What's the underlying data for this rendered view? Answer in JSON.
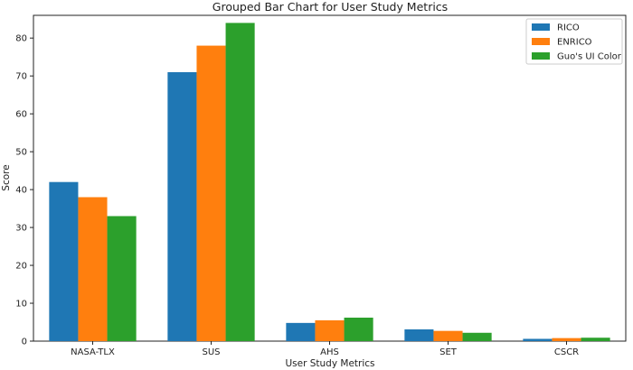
{
  "chart_data": {
    "type": "bar",
    "title": "Grouped Bar Chart for User Study Metrics",
    "xlabel": "User Study Metrics",
    "ylabel": "Score",
    "categories": [
      "NASA-TLX",
      "SUS",
      "AHS",
      "SET",
      "CSCR"
    ],
    "series": [
      {
        "name": "RICO",
        "color": "#1f77b4",
        "values": [
          42,
          71,
          4.8,
          3.1,
          0.6
        ]
      },
      {
        "name": "ENRICO",
        "color": "#ff7f0e",
        "values": [
          38,
          78,
          5.5,
          2.7,
          0.8
        ]
      },
      {
        "name": "Guo's UI Color",
        "color": "#2ca02c",
        "values": [
          33,
          84,
          6.2,
          2.2,
          0.9
        ]
      }
    ],
    "ylim": [
      0,
      86
    ],
    "yticks": [
      0,
      10,
      20,
      30,
      40,
      50,
      60,
      70,
      80
    ],
    "grid": false,
    "legend_position": "top-right"
  }
}
